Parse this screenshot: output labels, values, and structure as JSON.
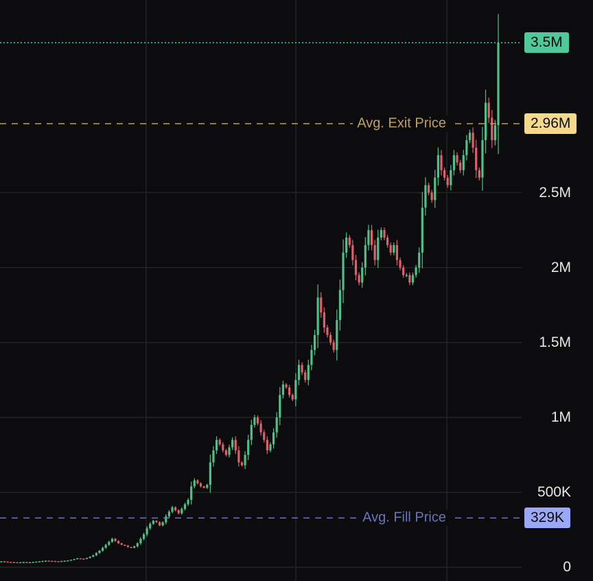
{
  "chart_data": {
    "type": "candlestick",
    "y_axis": {
      "min": 0,
      "max": 3500000,
      "ticks": [
        {
          "value": 0,
          "label": "0"
        },
        {
          "value": 500000,
          "label": "500K"
        },
        {
          "value": 1000000,
          "label": "1M"
        },
        {
          "value": 1500000,
          "label": "1.5M"
        },
        {
          "value": 2000000,
          "label": "2M"
        },
        {
          "value": 2500000,
          "label": "2.5M"
        }
      ],
      "position": "right"
    },
    "grid": true,
    "reference_lines": [
      {
        "label": "Avg. Exit Price",
        "value": 2960000,
        "badge": "2.96M",
        "color": "#bfa15a",
        "badge_color": "#f5d98a",
        "style": "dashed"
      },
      {
        "label": "Avg. Fill Price",
        "value": 329000,
        "badge": "329K",
        "color": "#6b74b8",
        "badge_color": "#9aa8f5",
        "style": "dashed"
      },
      {
        "label": "",
        "value": 3500000,
        "badge": "3.5M",
        "color": "#4fc99a",
        "badge_color": "#4fc99a",
        "style": "dotted"
      }
    ],
    "colors": {
      "up": "#4fc08a",
      "down": "#e0606a",
      "background": "#0c0c0e",
      "grid": "#232326"
    },
    "series": [
      {
        "name": "",
        "closes": [
          40000,
          38000,
          36000,
          35000,
          34000,
          33000,
          34000,
          35000,
          33000,
          34000,
          36000,
          38000,
          40000,
          42000,
          44000,
          43000,
          42000,
          41000,
          40000,
          42000,
          44000,
          46000,
          50000,
          55000,
          60000,
          58000,
          56000,
          62000,
          70000,
          80000,
          95000,
          110000,
          130000,
          150000,
          170000,
          190000,
          175000,
          160000,
          150000,
          145000,
          135000,
          130000,
          140000,
          160000,
          190000,
          220000,
          260000,
          290000,
          310000,
          300000,
          280000,
          300000,
          340000,
          370000,
          400000,
          380000,
          360000,
          390000,
          420000,
          450000,
          540000,
          580000,
          560000,
          540000,
          530000,
          550000,
          700000,
          780000,
          850000,
          820000,
          780000,
          750000,
          800000,
          850000,
          780000,
          700000,
          680000,
          750000,
          850000,
          950000,
          1000000,
          960000,
          900000,
          850000,
          780000,
          820000,
          900000,
          1000000,
          1150000,
          1220000,
          1200000,
          1150000,
          1120000,
          1250000,
          1350000,
          1300000,
          1250000,
          1350000,
          1450000,
          1550000,
          1800000,
          1700000,
          1600000,
          1550000,
          1500000,
          1450000,
          1650000,
          1850000,
          2100000,
          2200000,
          2150000,
          2050000,
          1950000,
          1900000,
          2000000,
          2150000,
          2250000,
          2150000,
          2050000,
          2200000,
          2250000,
          2200000,
          2150000,
          2100000,
          2150000,
          2050000,
          2000000,
          1950000,
          1950000,
          1900000,
          1950000,
          2000000,
          2100000,
          2400000,
          2550000,
          2500000,
          2450000,
          2600000,
          2750000,
          2650000,
          2600000,
          2550000,
          2650000,
          2750000,
          2700000,
          2650000,
          2750000,
          2850000,
          2900000,
          2800000,
          2650000,
          2600000,
          2850000,
          3100000,
          3000000,
          2850000,
          2950000,
          3500000
        ]
      }
    ]
  }
}
